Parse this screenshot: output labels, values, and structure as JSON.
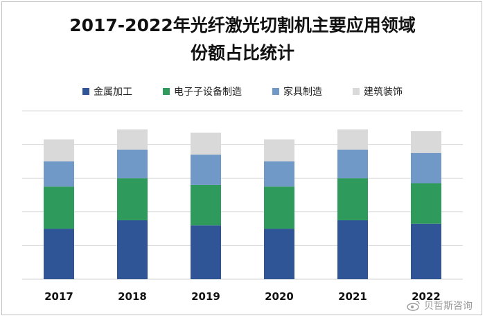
{
  "title_line1": "2017-2022年光纤激光切割机主要应用领域",
  "title_line2": "份额占比统计",
  "watermark": "贝哲斯咨询",
  "colors": {
    "metal": "#2f5597",
    "electronics": "#2e9a5c",
    "furniture": "#7199c7",
    "construction": "#d9d9d9",
    "grid": "#d9d9d9"
  },
  "chart_data": {
    "type": "bar",
    "stacked": true,
    "title": "2017-2022年光纤激光切割机主要应用领域份额占比统计",
    "xlabel": "",
    "ylabel": "",
    "ylim": [
      0,
      100
    ],
    "grid": true,
    "legend_position": "top",
    "categories": [
      "2017",
      "2018",
      "2019",
      "2020",
      "2021",
      "2022"
    ],
    "series": [
      {
        "name": "金属加工",
        "color": "#2f5597",
        "values": [
          30,
          35,
          32,
          30,
          35,
          33
        ]
      },
      {
        "name": "电子子设备制造",
        "color": "#2e9a5c",
        "values": [
          25,
          25,
          24,
          25,
          25,
          24
        ]
      },
      {
        "name": "家具制造",
        "color": "#7199c7",
        "values": [
          15,
          17,
          18,
          15,
          17,
          18
        ]
      },
      {
        "name": "建筑装饰",
        "color": "#d9d9d9",
        "values": [
          13,
          12,
          13,
          13,
          12,
          13
        ]
      }
    ]
  }
}
